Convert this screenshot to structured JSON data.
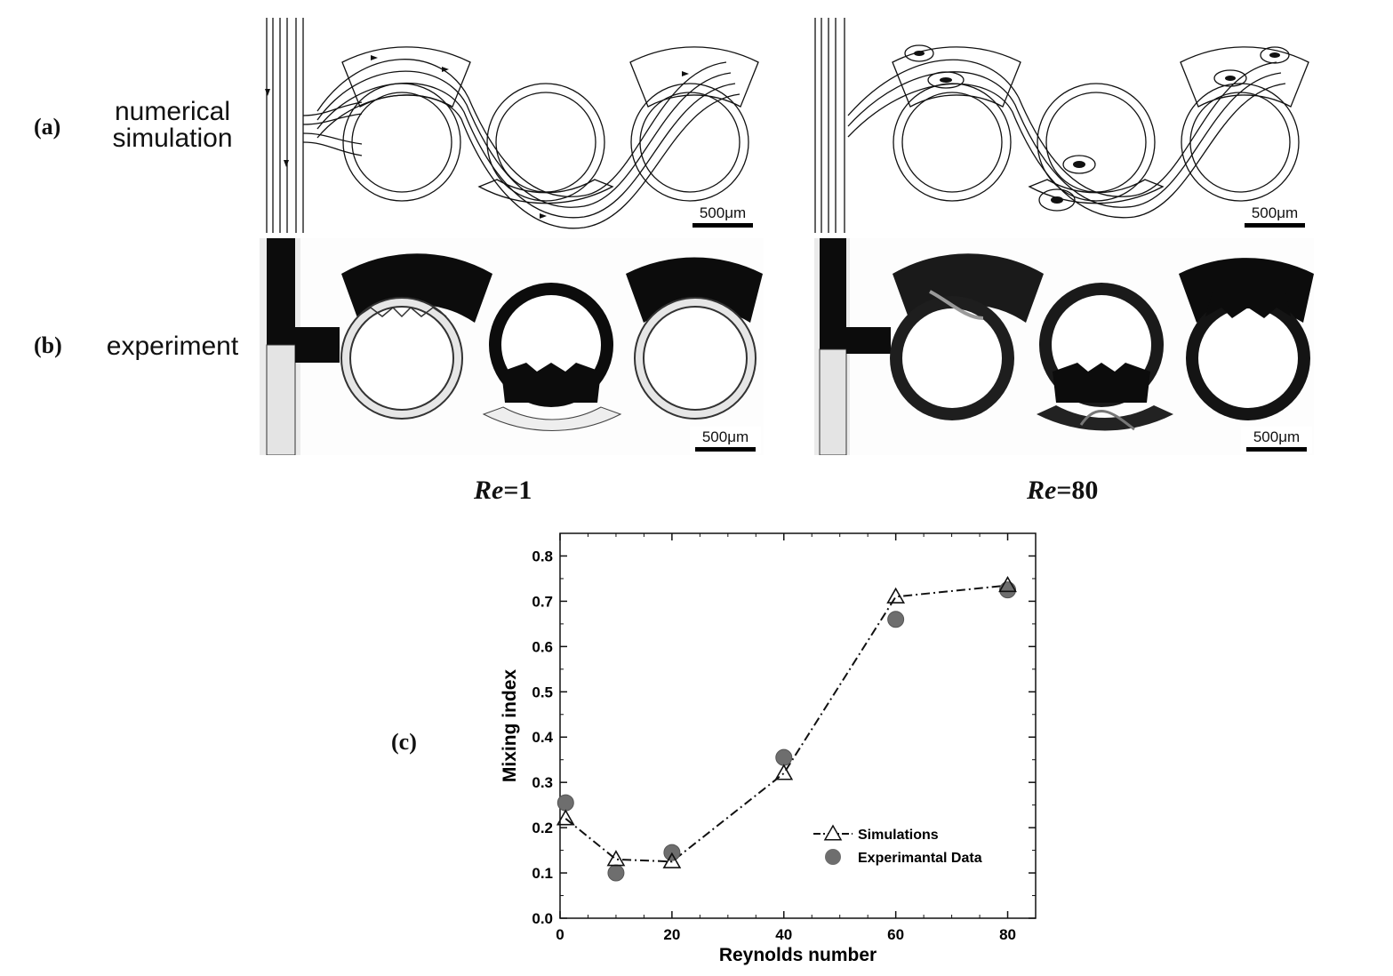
{
  "rows": [
    {
      "tag": "(a)",
      "label_line1": "numerical",
      "label_line2": "simulation"
    },
    {
      "tag": "(b)",
      "label": "experiment"
    }
  ],
  "scale_bar": "500μm",
  "conditions": [
    {
      "symbol": "Re",
      "value": "=1"
    },
    {
      "symbol": "Re",
      "value": "=80"
    }
  ],
  "chart_tag": "(c)",
  "chart_data": {
    "type": "scatter",
    "xlabel": "Reynolds number",
    "ylabel": "Mixing index",
    "xlim": [
      0,
      85
    ],
    "ylim": [
      0,
      0.85
    ],
    "xticks": [
      0,
      20,
      40,
      60,
      80
    ],
    "yticks": [
      0.0,
      0.1,
      0.2,
      0.3,
      0.4,
      0.5,
      0.6,
      0.7,
      0.8
    ],
    "legend_position": "bottom-right",
    "grid": false,
    "series": [
      {
        "name": "Simulations",
        "style": "dash-dot line with open triangles",
        "x": [
          1,
          10,
          20,
          40,
          60,
          80
        ],
        "y": [
          0.22,
          0.13,
          0.125,
          0.32,
          0.71,
          0.735
        ]
      },
      {
        "name": "Experimantal Data",
        "style": "filled gray circles",
        "x": [
          1,
          10,
          20,
          40,
          60,
          80
        ],
        "y": [
          0.255,
          0.1,
          0.145,
          0.355,
          0.66,
          0.725
        ]
      }
    ]
  },
  "colors": {
    "fluid": "#0c0c0c",
    "channel_bg": "#ebebeb",
    "marker_fill": "#6e6e6e"
  }
}
